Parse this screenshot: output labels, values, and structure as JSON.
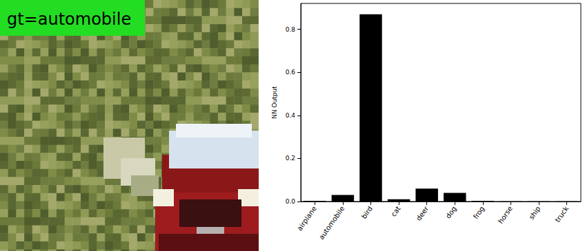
{
  "image": {
    "label": "gt=automobile"
  },
  "chart_data": {
    "type": "bar",
    "y_label": "NN Output",
    "categories": [
      "airplane",
      "automobile",
      "bird",
      "cat",
      "deer",
      "dog",
      "frog",
      "horse",
      "ship",
      "truck"
    ],
    "values": [
      0.002,
      0.03,
      0.87,
      0.01,
      0.06,
      0.04,
      0.002,
      0.001,
      0.001,
      0.001
    ],
    "color": "#000000",
    "ylim": [
      0,
      0.92
    ],
    "yticks": [
      {
        "value": 0,
        "label": "0.0"
      },
      {
        "value": 0.2,
        "label": "0.2"
      },
      {
        "value": 0.4,
        "label": "0.4"
      },
      {
        "value": 0.6,
        "label": "0.6"
      },
      {
        "value": 0.8,
        "label": "0.8"
      }
    ],
    "grid": false
  }
}
